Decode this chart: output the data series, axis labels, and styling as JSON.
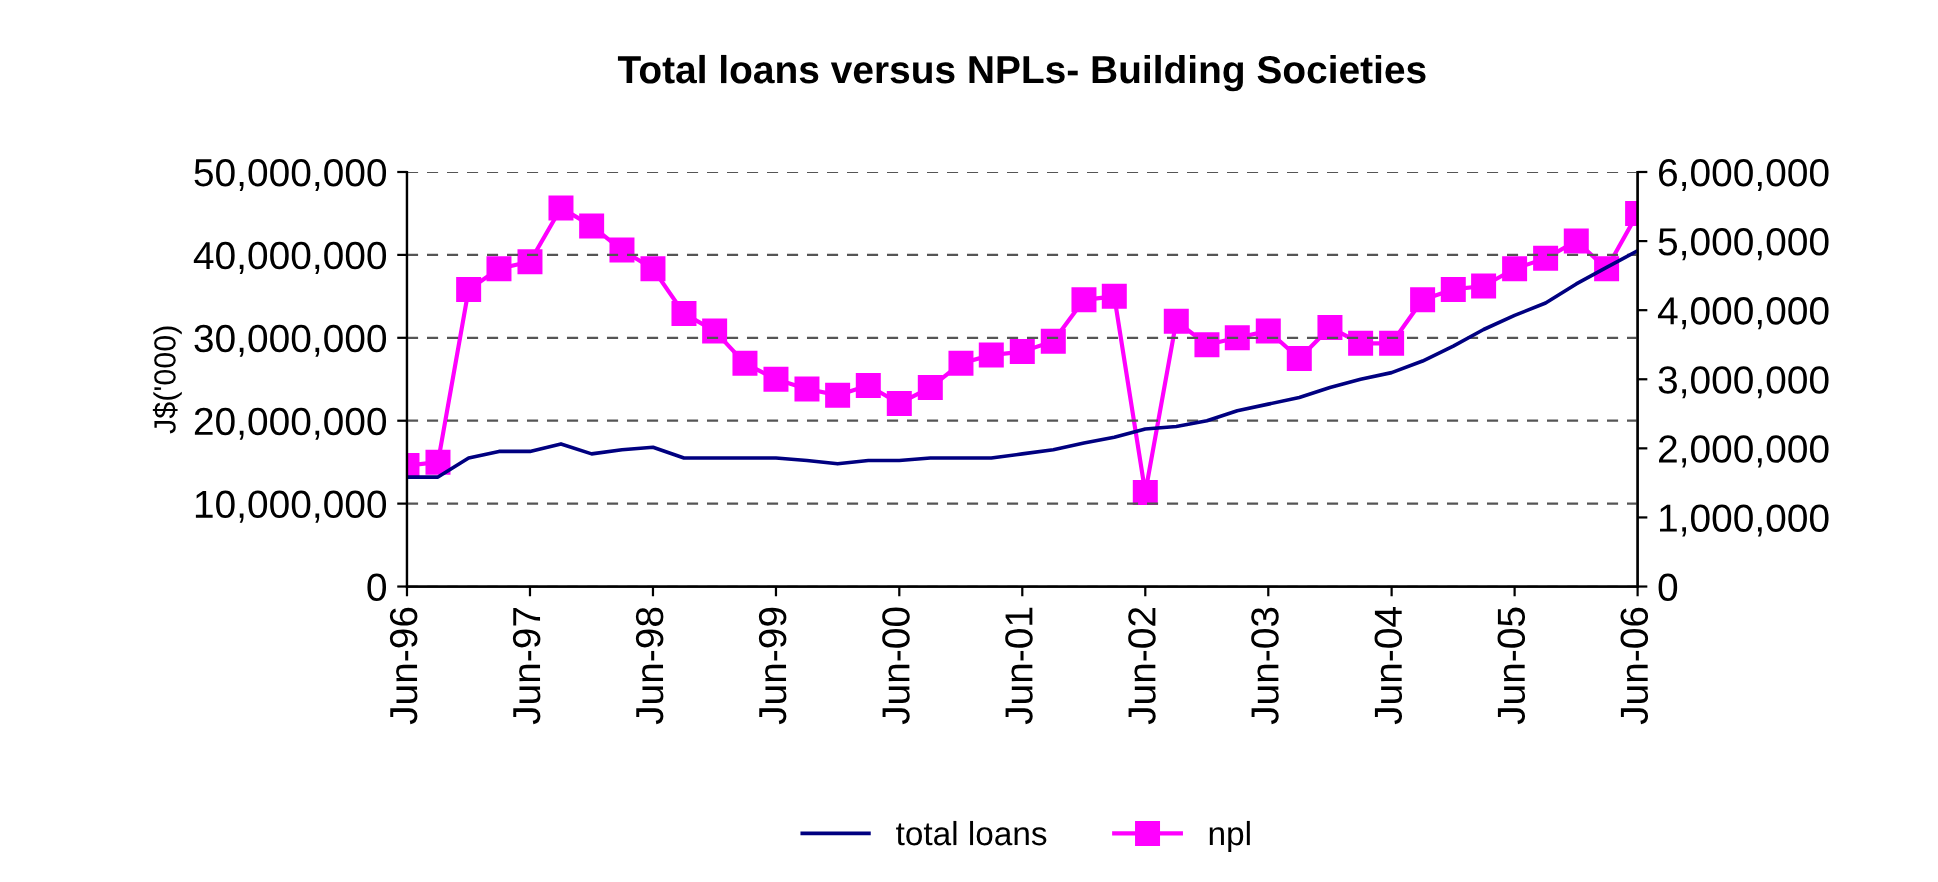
{
  "chart_data": {
    "type": "line",
    "title": "Total loans versus NPLs- Building Societies",
    "ylabel": "J$('000)",
    "x": [
      "1996-06",
      "1996-09",
      "1996-12",
      "1997-03",
      "1997-06",
      "1997-09",
      "1997-12",
      "1998-03",
      "1998-06",
      "1998-09",
      "1998-12",
      "1999-03",
      "1999-06",
      "1999-09",
      "1999-12",
      "2000-03",
      "2000-06",
      "2000-09",
      "2000-12",
      "2001-03",
      "2001-06",
      "2001-09",
      "2001-12",
      "2002-03",
      "2002-06",
      "2002-09",
      "2002-12",
      "2003-03",
      "2003-06",
      "2003-09",
      "2003-12",
      "2004-03",
      "2004-06",
      "2004-09",
      "2004-12",
      "2005-03",
      "2005-06",
      "2005-09",
      "2005-12",
      "2006-03",
      "2006-06"
    ],
    "series": [
      {
        "name": "total loans",
        "color": "#000080",
        "marker": "none",
        "values": [
          13200000,
          13200000,
          15500000,
          16300000,
          16300000,
          17200000,
          16000000,
          16500000,
          16800000,
          15500000,
          15500000,
          15500000,
          15500000,
          15200000,
          14800000,
          15200000,
          15200000,
          15500000,
          15500000,
          15500000,
          16000000,
          16500000,
          17300000,
          18000000,
          19000000,
          19300000,
          20000000,
          21200000,
          22000000,
          22800000,
          24000000,
          25000000,
          25800000,
          27200000,
          29000000,
          31000000,
          32700000,
          34200000,
          36500000,
          38500000,
          40500000
        ]
      },
      {
        "name": "npl",
        "color": "#ff00ff",
        "marker": "square",
        "axis": "y2",
        "values": [
          1750000,
          1800000,
          4300000,
          4600000,
          4700000,
          5480000,
          5220000,
          4870000,
          4600000,
          3950000,
          3700000,
          3230000,
          3000000,
          2860000,
          2770000,
          2910000,
          2650000,
          2880000,
          3230000,
          3350000,
          3400000,
          3550000,
          4150000,
          4200000,
          1360000,
          3840000,
          3500000,
          3600000,
          3700000,
          3300000,
          3750000,
          3520000,
          3520000,
          4150000,
          4300000,
          4350000,
          4600000,
          4750000,
          5000000,
          4600000,
          5400000
        ]
      }
    ],
    "xlim": [
      "1996-06",
      "2006-06"
    ],
    "xticks": [
      {
        "value": "1996-06",
        "label": "Jun-96"
      },
      {
        "value": "1997-06",
        "label": "Jun-97"
      },
      {
        "value": "1998-06",
        "label": "Jun-98"
      },
      {
        "value": "1999-06",
        "label": "Jun-99"
      },
      {
        "value": "2000-06",
        "label": "Jun-00"
      },
      {
        "value": "2001-06",
        "label": "Jun-01"
      },
      {
        "value": "2002-06",
        "label": "Jun-02"
      },
      {
        "value": "2003-06",
        "label": "Jun-03"
      },
      {
        "value": "2004-06",
        "label": "Jun-04"
      },
      {
        "value": "2005-06",
        "label": "Jun-05"
      },
      {
        "value": "2006-06",
        "label": "Jun-06"
      }
    ],
    "ylim": [
      0,
      50000000
    ],
    "yticks": [
      {
        "value": 0,
        "label": "0"
      },
      {
        "value": 10000000,
        "label": "10,000,000"
      },
      {
        "value": 20000000,
        "label": "20,000,000"
      },
      {
        "value": 30000000,
        "label": "30,000,000"
      },
      {
        "value": 40000000,
        "label": "40,000,000"
      },
      {
        "value": 50000000,
        "label": "50,000,000"
      }
    ],
    "y2lim": [
      0,
      6000000
    ],
    "y2ticks": [
      {
        "value": 0,
        "label": "0"
      },
      {
        "value": 1000000,
        "label": "1,000,000"
      },
      {
        "value": 2000000,
        "label": "2,000,000"
      },
      {
        "value": 3000000,
        "label": "3,000,000"
      },
      {
        "value": 4000000,
        "label": "4,000,000"
      },
      {
        "value": 5000000,
        "label": "5,000,000"
      },
      {
        "value": 6000000,
        "label": "6,000,000"
      }
    ],
    "grid": "y",
    "legend": "bottom"
  }
}
